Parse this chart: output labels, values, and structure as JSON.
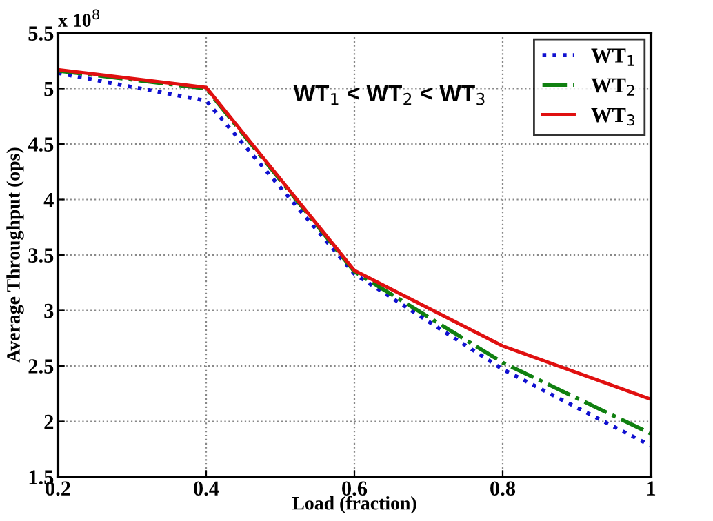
{
  "chart_data": {
    "type": "line",
    "xlabel": "Load (fraction)",
    "ylabel": "Average Throughput (ops)",
    "annotations": [
      "x 10$^{8}$",
      "WT$_{1}$ < WT$_{2}$ < WT$_{3}$"
    ],
    "x": [
      0.2,
      0.4,
      0.6,
      0.8,
      1
    ],
    "series": [
      {
        "name": "WT$_{1}$",
        "color": "#1010d0",
        "line_style": "dotted",
        "values": [
          5.14,
          4.89,
          3.33,
          2.47,
          1.78
        ]
      },
      {
        "name": "WT$_{2}$",
        "color": "#108010",
        "line_style": "dashdot",
        "values": [
          5.16,
          5.0,
          3.35,
          2.53,
          1.89
        ]
      },
      {
        "name": "WT$_{3}$",
        "color": "#e01010",
        "line_style": "solid",
        "values": [
          5.17,
          5.01,
          3.36,
          2.68,
          2.2
        ]
      }
    ],
    "xlim": [
      0.2,
      1
    ],
    "ylim": [
      1.5,
      5.5
    ],
    "xticks": [
      0.2,
      0.4,
      0.6,
      0.8,
      1
    ],
    "yticks": [
      1.5,
      2,
      2.5,
      3,
      3.5,
      4,
      4.5,
      5,
      5.5
    ],
    "grid": true,
    "legend": "top right",
    "marker": "none"
  }
}
